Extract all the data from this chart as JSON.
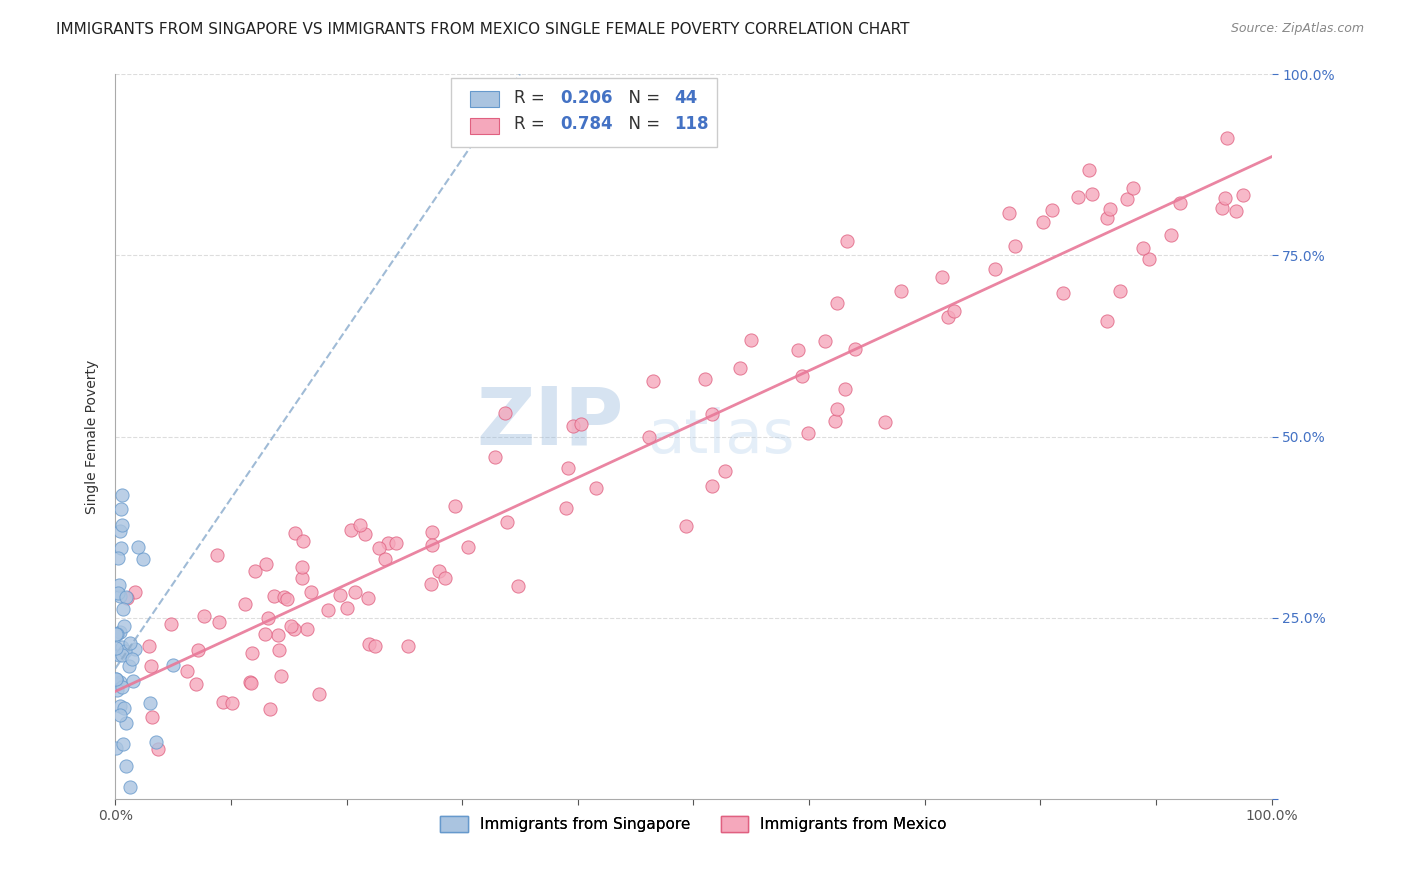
{
  "title": "IMMIGRANTS FROM SINGAPORE VS IMMIGRANTS FROM MEXICO SINGLE FEMALE POVERTY CORRELATION CHART",
  "source": "Source: ZipAtlas.com",
  "ylabel": "Single Female Poverty",
  "xlim": [
    0,
    1.0
  ],
  "ylim": [
    0,
    1.0
  ],
  "singapore_color": "#aac4e0",
  "mexico_color": "#f5a8bc",
  "singapore_edge": "#6699cc",
  "mexico_edge": "#e06080",
  "singapore_line_color": "#88aacc",
  "mexico_line_color": "#e87898",
  "singapore_R": 0.206,
  "singapore_N": 44,
  "mexico_R": 0.784,
  "mexico_N": 118,
  "watermark_zip": "ZIP",
  "watermark_atlas": "atlas",
  "background_color": "#ffffff",
  "grid_color": "#dddddd",
  "title_fontsize": 11,
  "axis_label_fontsize": 10,
  "tick_fontsize": 10,
  "right_tick_color": "#4472c4",
  "left_tick_color": "#4472c4",
  "legend_box_singapore": "#aac4e0",
  "legend_box_mexico": "#f5a8bc"
}
